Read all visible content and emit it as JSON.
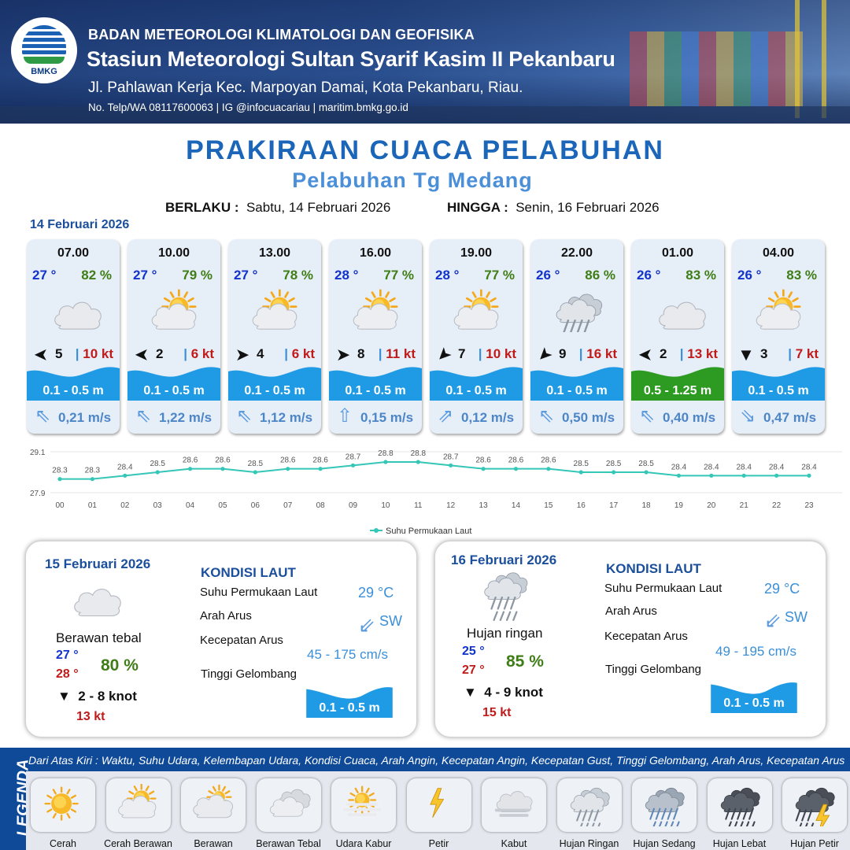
{
  "header": {
    "agency": "BADAN METEOROLOGI KLIMATOLOGI DAN GEOFISIKA",
    "station": "Stasiun Meteorologi Sultan Syarif Kasim II Pekanbaru",
    "address": "Jl. Pahlawan Kerja Kec. Marpoyan Damai, Kota Pekanbaru, Riau.",
    "contact": "No. Telp/WA 08117600063 | IG @infocuacariau | maritim.bmkg.go.id",
    "logo_text": "BMKG"
  },
  "title": "PRAKIRAAN CUACA PELABUHAN",
  "port": "Pelabuhan Tg Medang",
  "validity": {
    "from_label": "BERLAKU :",
    "from_value": "Sabtu, 14 Februari 2026",
    "to_label": "HINGGA :",
    "to_value": "Senin, 16 Februari 2026"
  },
  "day1_date": "14 Februari 2026",
  "colors": {
    "wave_blue": "#1f9be6",
    "wave_green": "#2d9a22",
    "temp_blue": "#1133cc",
    "hum_green": "#3f7d17",
    "gust_red": "#c11a1a",
    "title_blue": "#1b66b8"
  },
  "cards": [
    {
      "time": "07.00",
      "temp": "27 °",
      "humidity": "82 %",
      "icon": "cloudy-icon",
      "wind_dir": "arrow-left-icon",
      "wind_speed": "5",
      "gust": "10 kt",
      "wave": "0.1 - 0.5 m",
      "wave_color": "blue",
      "current_dir": "arrow-up-left-icon",
      "current_speed": "0,21 m/s"
    },
    {
      "time": "10.00",
      "temp": "27 °",
      "humidity": "79 %",
      "icon": "partly-cloudy-icon",
      "wind_dir": "arrow-left-icon",
      "wind_speed": "2",
      "gust": "6 kt",
      "wave": "0.1 - 0.5 m",
      "wave_color": "blue",
      "current_dir": "arrow-up-left-icon",
      "current_speed": "1,22 m/s"
    },
    {
      "time": "13.00",
      "temp": "27 °",
      "humidity": "78 %",
      "icon": "partly-cloudy-icon",
      "wind_dir": "arrow-right-icon",
      "wind_speed": "4",
      "gust": "6 kt",
      "wave": "0.1 - 0.5 m",
      "wave_color": "blue",
      "current_dir": "arrow-up-left-icon",
      "current_speed": "1,12 m/s"
    },
    {
      "time": "16.00",
      "temp": "28 °",
      "humidity": "77 %",
      "icon": "partly-cloudy-icon",
      "wind_dir": "arrow-right-icon",
      "wind_speed": "8",
      "gust": "11 kt",
      "wave": "0.1 - 0.5 m",
      "wave_color": "blue",
      "current_dir": "arrow-up-icon",
      "current_speed": "0,15 m/s"
    },
    {
      "time": "19.00",
      "temp": "28 °",
      "humidity": "77 %",
      "icon": "partly-cloudy-icon",
      "wind_dir": "arrow-down-left-icon",
      "wind_speed": "7",
      "gust": "10 kt",
      "wave": "0.1 - 0.5 m",
      "wave_color": "blue",
      "current_dir": "arrow-up-right-icon",
      "current_speed": "0,12 m/s"
    },
    {
      "time": "22.00",
      "temp": "26 °",
      "humidity": "86 %",
      "icon": "light-rain-icon",
      "wind_dir": "arrow-down-left-icon",
      "wind_speed": "9",
      "gust": "16 kt",
      "wave": "0.1 - 0.5 m",
      "wave_color": "blue",
      "current_dir": "arrow-up-left-icon",
      "current_speed": "0,50 m/s"
    },
    {
      "time": "01.00",
      "temp": "26 °",
      "humidity": "83 %",
      "icon": "cloudy-icon",
      "wind_dir": "arrow-left-icon",
      "wind_speed": "2",
      "gust": "13 kt",
      "wave": "0.5 - 1.25 m",
      "wave_color": "green",
      "current_dir": "arrow-up-left-icon",
      "current_speed": "0,40 m/s"
    },
    {
      "time": "04.00",
      "temp": "26 °",
      "humidity": "83 %",
      "icon": "partly-cloudy-icon",
      "wind_dir": "arrow-down-icon",
      "wind_speed": "3",
      "gust": "7 kt",
      "wave": "0.1 - 0.5 m",
      "wave_color": "blue",
      "current_dir": "arrow-down-right-icon",
      "current_speed": "0,47 m/s"
    }
  ],
  "chart_data": {
    "type": "line",
    "x": [
      "00",
      "01",
      "02",
      "03",
      "04",
      "05",
      "06",
      "07",
      "08",
      "09",
      "10",
      "11",
      "12",
      "13",
      "14",
      "15",
      "16",
      "17",
      "18",
      "19",
      "20",
      "21",
      "22",
      "23"
    ],
    "series": [
      {
        "name": "Suhu Permukaan Laut",
        "values": [
          28.3,
          28.3,
          28.4,
          28.5,
          28.6,
          28.6,
          28.5,
          28.6,
          28.6,
          28.7,
          28.8,
          28.8,
          28.7,
          28.6,
          28.6,
          28.6,
          28.5,
          28.5,
          28.5,
          28.4,
          28.4,
          28.4,
          28.4,
          28.4
        ]
      }
    ],
    "ylim": [
      27.9,
      29.1
    ],
    "ytick_labels": [
      "29.1",
      "27.9"
    ],
    "legend_position": "bottom",
    "line_color": "#34c6b6"
  },
  "days": [
    {
      "date": "15 Februari 2026",
      "icon": "cloudy-icon",
      "condition": "Berawan tebal",
      "temp_min": "27 °",
      "temp_max": "28 °",
      "humidity": "80 %",
      "wind_dir": "arrow-down-icon",
      "wind": "2  - 8 knot",
      "gust": "13 kt",
      "sea_title": "KONDISI LAUT",
      "sst_label": "Suhu Permukaan Laut",
      "sst_value": "29 °C",
      "current_dir_label": "Arah Arus",
      "current_dir_icon": "arrow-down-left-icon",
      "current_dir_value": "SW",
      "current_speed_label": "Kecepatan Arus",
      "current_speed_value": "45  - 175 cm/s",
      "wave_label": "Tinggi Gelombang",
      "wave_value": "0.1 - 0.5 m"
    },
    {
      "date": "16 Februari 2026",
      "icon": "light-rain-icon",
      "condition": "Hujan ringan",
      "temp_min": "25 °",
      "temp_max": "27 °",
      "humidity": "85 %",
      "wind_dir": "arrow-down-icon",
      "wind": "4  - 9 knot",
      "gust": "15 kt",
      "sea_title": "KONDISI LAUT",
      "sst_label": "Suhu Permukaan Laut",
      "sst_value": "29 °C",
      "current_dir_label": "Arah Arus",
      "current_dir_icon": "arrow-down-left-icon",
      "current_dir_value": "SW",
      "current_speed_label": "Kecepatan Arus",
      "current_speed_value": "49  - 195 cm/s",
      "wave_label": "Tinggi Gelombang",
      "wave_value": "0.1 - 0.5 m"
    }
  ],
  "legend": {
    "title": "LEGENDA",
    "note": "Dari Atas Kiri : Waktu, Suhu Udara, Kelembapan Udara, Kondisi Cuaca, Arah Angin, Kecepatan Angin, Kecepatan Gust, Tinggi Gelombang, Arah Arus, Kecepatan Arus",
    "items": [
      {
        "label": "Cerah",
        "icon": "sunny-icon"
      },
      {
        "label": "Cerah Berawan",
        "icon": "partly-cloudy-icon"
      },
      {
        "label": "Berawan",
        "icon": "cloudy-sun-icon"
      },
      {
        "label": "Berawan Tebal",
        "icon": "overcast-icon"
      },
      {
        "label": "Udara Kabur",
        "icon": "haze-icon"
      },
      {
        "label": "Petir",
        "icon": "lightning-icon"
      },
      {
        "label": "Kabut",
        "icon": "fog-icon"
      },
      {
        "label": "Hujan Ringan",
        "icon": "light-rain-icon"
      },
      {
        "label": "Hujan Sedang",
        "icon": "moderate-rain-icon"
      },
      {
        "label": "Hujan Lebat",
        "icon": "heavy-rain-icon"
      },
      {
        "label": "Hujan Petir",
        "icon": "thunderstorm-icon"
      }
    ]
  }
}
